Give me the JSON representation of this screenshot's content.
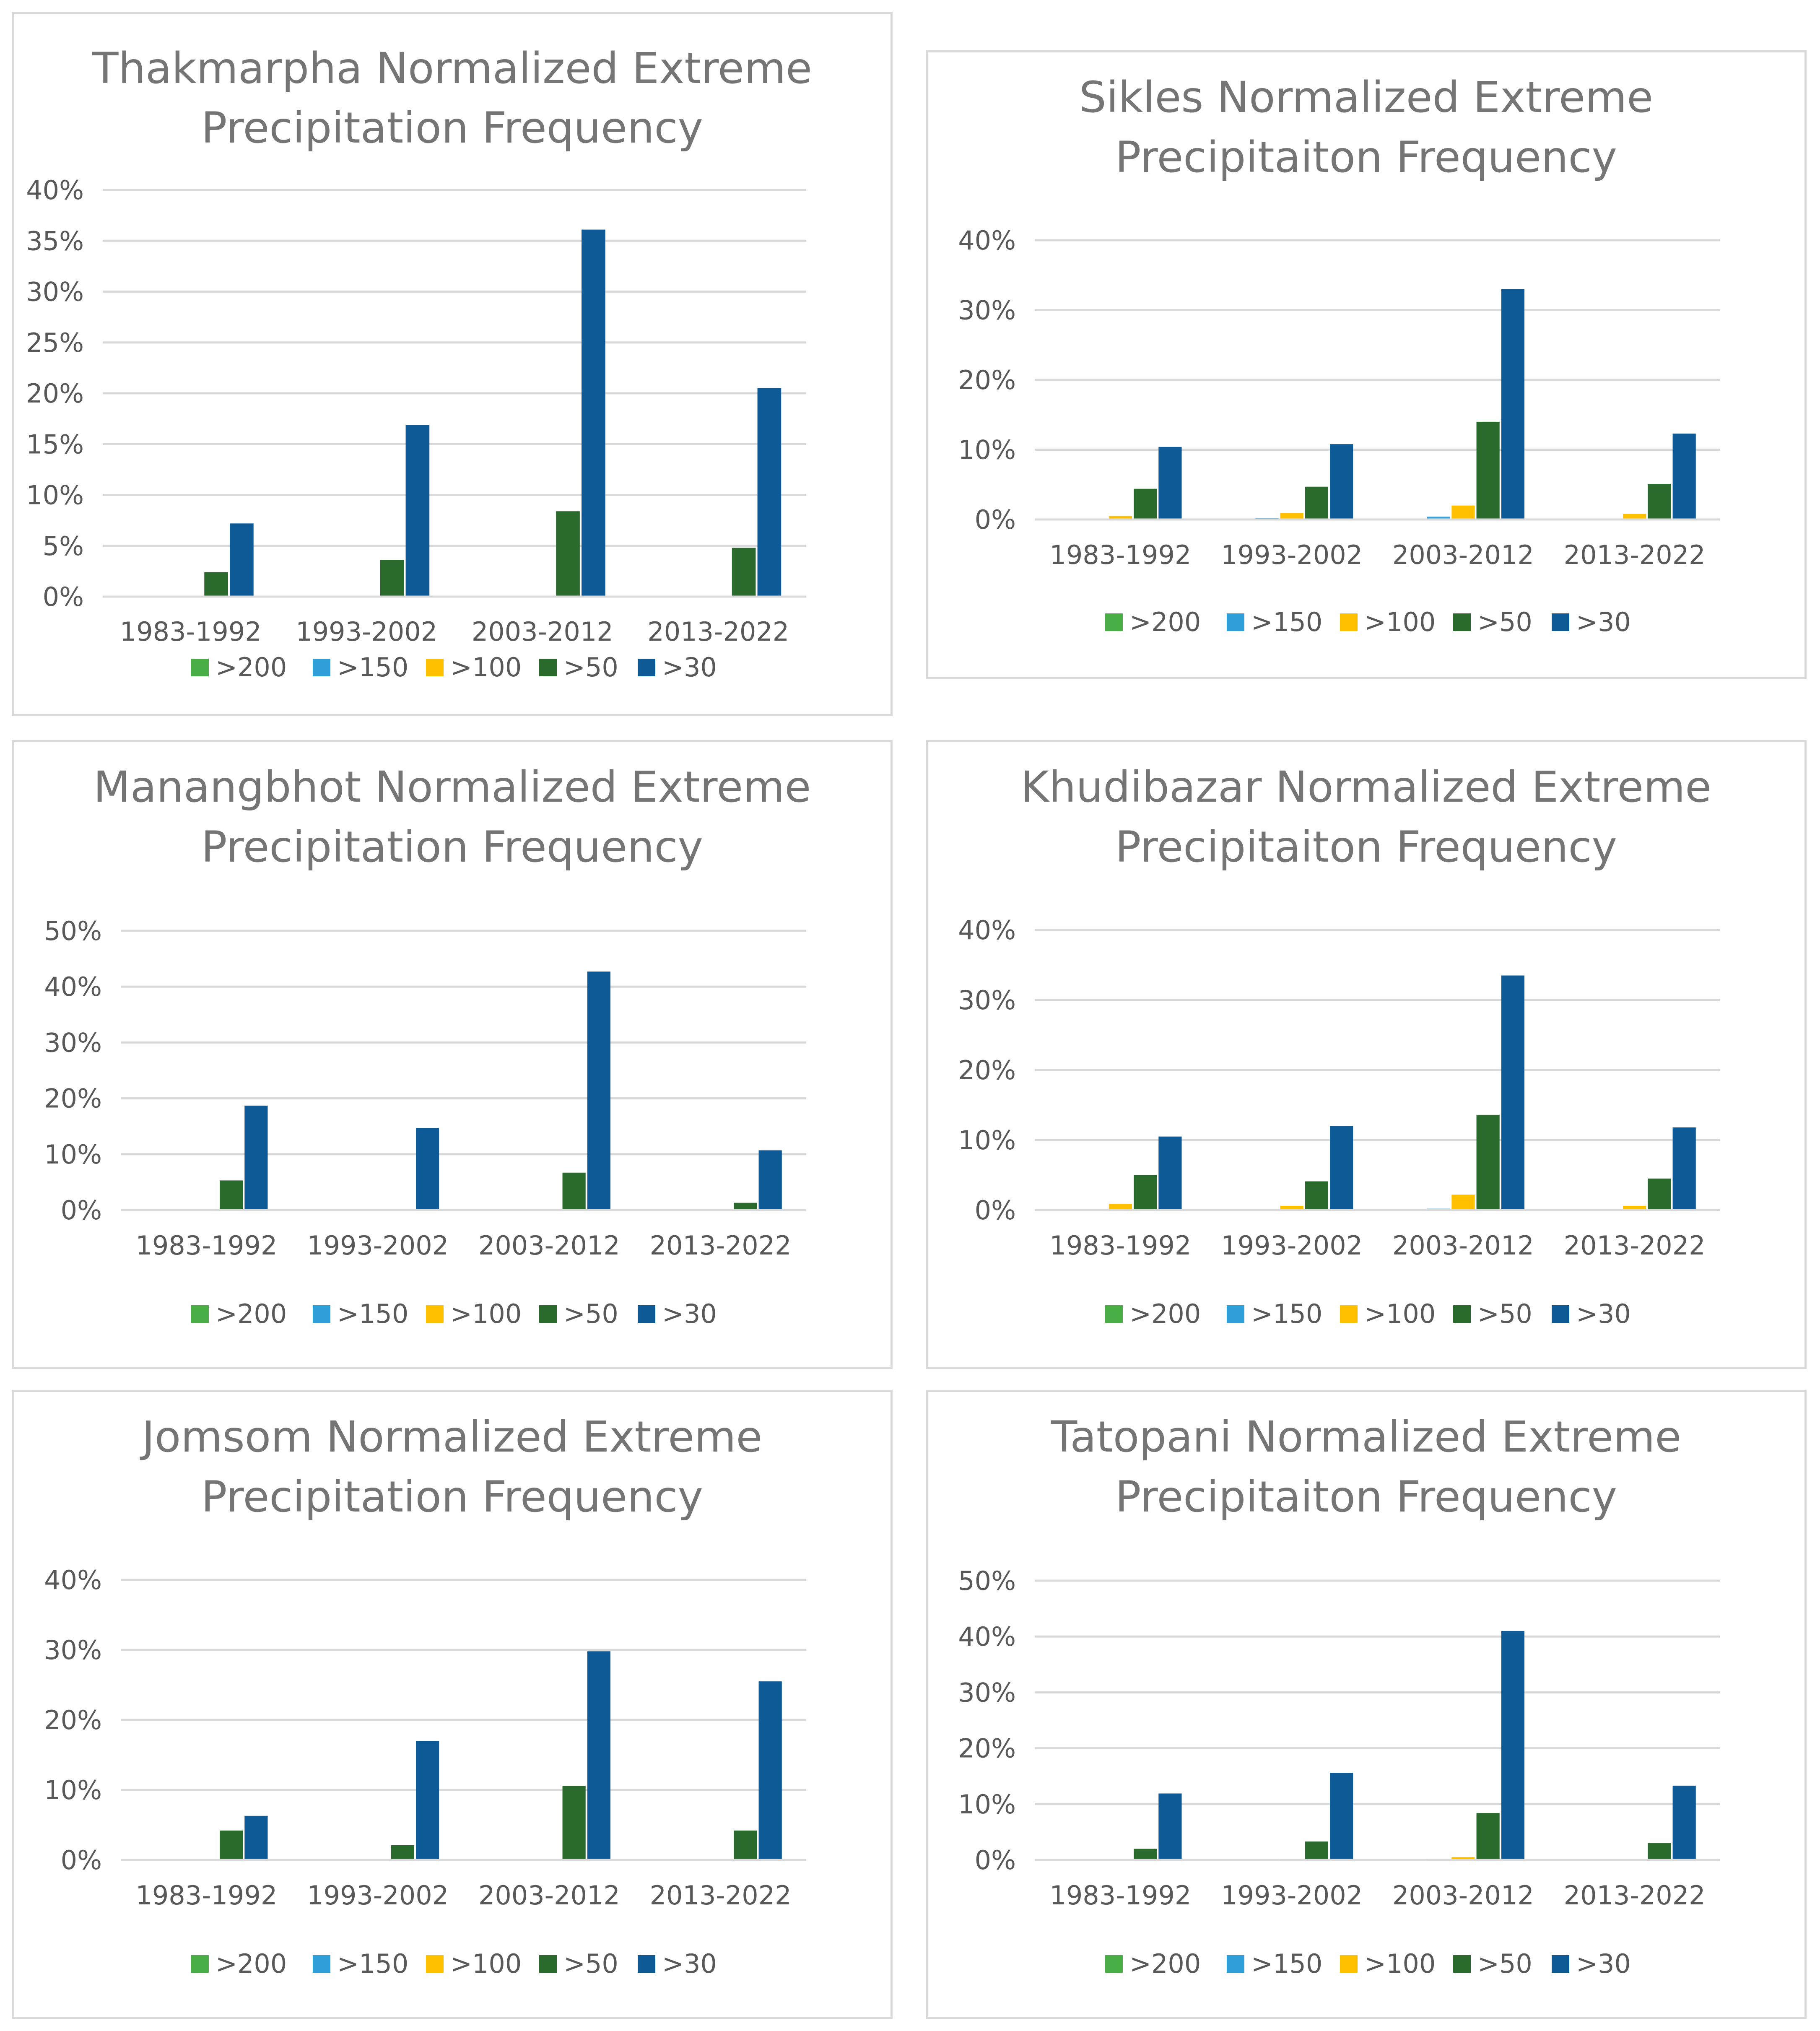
{
  "chart_data": [
    {
      "type": "bar",
      "title_lines": [
        "Thakmarpha Normalized Extreme",
        "Precipitation Frequency"
      ],
      "categories": [
        "1983-1992",
        "1993-2002",
        "2003-2012",
        "2013-2022"
      ],
      "ylim": [
        0,
        40
      ],
      "yticks": [
        0,
        5,
        10,
        15,
        20,
        25,
        30,
        35,
        40
      ],
      "ytick_labels": [
        "0%",
        "5%",
        "10%",
        "15%",
        "20%",
        "25%",
        "30%",
        "35%",
        "40%"
      ],
      "legend_position": "bottom",
      "series": [
        {
          "name": ">200",
          "color": "#4aae47",
          "values": [
            0,
            0,
            0,
            0
          ]
        },
        {
          "name": ">150",
          "color": "#2e9fd8",
          "values": [
            0,
            0,
            0,
            0
          ]
        },
        {
          "name": ">100",
          "color": "#ffc000",
          "values": [
            0,
            0,
            0,
            0
          ]
        },
        {
          "name": ">50",
          "color": "#2a6b2d",
          "values": [
            2.4,
            3.6,
            8.4,
            4.8
          ]
        },
        {
          "name": ">30",
          "color": "#0e5a96",
          "values": [
            7.2,
            16.9,
            36.1,
            20.5
          ]
        }
      ]
    },
    {
      "type": "bar",
      "title_lines": [
        "Sikles Normalized Extreme",
        "Precipitaiton Frequency"
      ],
      "categories": [
        "1983-1992",
        "1993-2002",
        "2003-2012",
        "2013-2022"
      ],
      "ylim": [
        0,
        40
      ],
      "yticks": [
        0,
        10,
        20,
        30,
        40
      ],
      "ytick_labels": [
        "0%",
        "10%",
        "20%",
        "30%",
        "40%"
      ],
      "legend_position": "bottom",
      "series": [
        {
          "name": ">200",
          "color": "#4aae47",
          "values": [
            0,
            0,
            0,
            0
          ]
        },
        {
          "name": ">150",
          "color": "#2e9fd8",
          "values": [
            0,
            0.2,
            0.4,
            0
          ]
        },
        {
          "name": ">100",
          "color": "#ffc000",
          "values": [
            0.5,
            0.9,
            2.0,
            0.8
          ]
        },
        {
          "name": ">50",
          "color": "#2a6b2d",
          "values": [
            4.4,
            4.7,
            14.0,
            5.1
          ]
        },
        {
          "name": ">30",
          "color": "#0e5a96",
          "values": [
            10.4,
            10.8,
            33.0,
            12.3
          ]
        }
      ]
    },
    {
      "type": "bar",
      "title_lines": [
        "Manangbhot Normalized Extreme",
        "Precipitation Frequency"
      ],
      "categories": [
        "1983-1992",
        "1993-2002",
        "2003-2012",
        "2013-2022"
      ],
      "ylim": [
        0,
        50
      ],
      "yticks": [
        0,
        10,
        20,
        30,
        40,
        50
      ],
      "ytick_labels": [
        "0%",
        "10%",
        "20%",
        "30%",
        "40%",
        "50%"
      ],
      "legend_position": "bottom",
      "series": [
        {
          "name": ">200",
          "color": "#4aae47",
          "values": [
            0,
            0,
            0,
            0
          ]
        },
        {
          "name": ">150",
          "color": "#2e9fd8",
          "values": [
            0,
            0,
            0,
            0
          ]
        },
        {
          "name": ">100",
          "color": "#ffc000",
          "values": [
            0,
            0,
            0,
            0
          ]
        },
        {
          "name": ">50",
          "color": "#2a6b2d",
          "values": [
            5.3,
            0,
            6.7,
            1.3
          ]
        },
        {
          "name": ">30",
          "color": "#0e5a96",
          "values": [
            18.7,
            14.7,
            42.7,
            10.7
          ]
        }
      ]
    },
    {
      "type": "bar",
      "title_lines": [
        "Khudibazar Normalized Extreme",
        "Precipitaiton Frequency"
      ],
      "categories": [
        "1983-1992",
        "1993-2002",
        "2003-2012",
        "2013-2022"
      ],
      "ylim": [
        0,
        40
      ],
      "yticks": [
        0,
        10,
        20,
        30,
        40
      ],
      "ytick_labels": [
        "0%",
        "10%",
        "20%",
        "30%",
        "40%"
      ],
      "legend_position": "bottom",
      "series": [
        {
          "name": ">200",
          "color": "#4aae47",
          "values": [
            0,
            0,
            0,
            0
          ]
        },
        {
          "name": ">150",
          "color": "#2e9fd8",
          "values": [
            0,
            0,
            0.2,
            0
          ]
        },
        {
          "name": ">100",
          "color": "#ffc000",
          "values": [
            0.9,
            0.6,
            2.2,
            0.6
          ]
        },
        {
          "name": ">50",
          "color": "#2a6b2d",
          "values": [
            5.0,
            4.1,
            13.6,
            4.5
          ]
        },
        {
          "name": ">30",
          "color": "#0e5a96",
          "values": [
            10.5,
            12.0,
            33.5,
            11.8
          ]
        }
      ]
    },
    {
      "type": "bar",
      "title_lines": [
        "Jomsom Normalized Extreme",
        "Precipitation Frequency"
      ],
      "categories": [
        "1983-1992",
        "1993-2002",
        "2003-2012",
        "2013-2022"
      ],
      "ylim": [
        0,
        40
      ],
      "yticks": [
        0,
        10,
        20,
        30,
        40
      ],
      "ytick_labels": [
        "0%",
        "10%",
        "20%",
        "30%",
        "40%"
      ],
      "legend_position": "bottom",
      "series": [
        {
          "name": ">200",
          "color": "#4aae47",
          "values": [
            0,
            0,
            0,
            0
          ]
        },
        {
          "name": ">150",
          "color": "#2e9fd8",
          "values": [
            0,
            0,
            0,
            0
          ]
        },
        {
          "name": ">100",
          "color": "#ffc000",
          "values": [
            0,
            0,
            0,
            0
          ]
        },
        {
          "name": ">50",
          "color": "#2a6b2d",
          "values": [
            4.2,
            2.1,
            10.6,
            4.2
          ]
        },
        {
          "name": ">30",
          "color": "#0e5a96",
          "values": [
            6.3,
            17.0,
            29.8,
            25.5
          ]
        }
      ]
    },
    {
      "type": "bar",
      "title_lines": [
        "Tatopani Normalized Extreme",
        "Precipitaiton Frequency"
      ],
      "categories": [
        "1983-1992",
        "1993-2002",
        "2003-2012",
        "2013-2022"
      ],
      "ylim": [
        0,
        50
      ],
      "yticks": [
        0,
        10,
        20,
        30,
        40,
        50
      ],
      "ytick_labels": [
        "0%",
        "10%",
        "20%",
        "30%",
        "40%",
        "50%"
      ],
      "legend_position": "bottom",
      "series": [
        {
          "name": ">200",
          "color": "#4aae47",
          "values": [
            0,
            0,
            0,
            0
          ]
        },
        {
          "name": ">150",
          "color": "#2e9fd8",
          "values": [
            0,
            0,
            0.2,
            0
          ]
        },
        {
          "name": ">100",
          "color": "#ffc000",
          "values": [
            0,
            0.2,
            0.5,
            0
          ]
        },
        {
          "name": ">50",
          "color": "#2a6b2d",
          "values": [
            2.0,
            3.3,
            8.4,
            3.0
          ]
        },
        {
          "name": ">30",
          "color": "#0e5a96",
          "values": [
            11.9,
            15.6,
            41.0,
            13.3
          ]
        }
      ]
    }
  ]
}
